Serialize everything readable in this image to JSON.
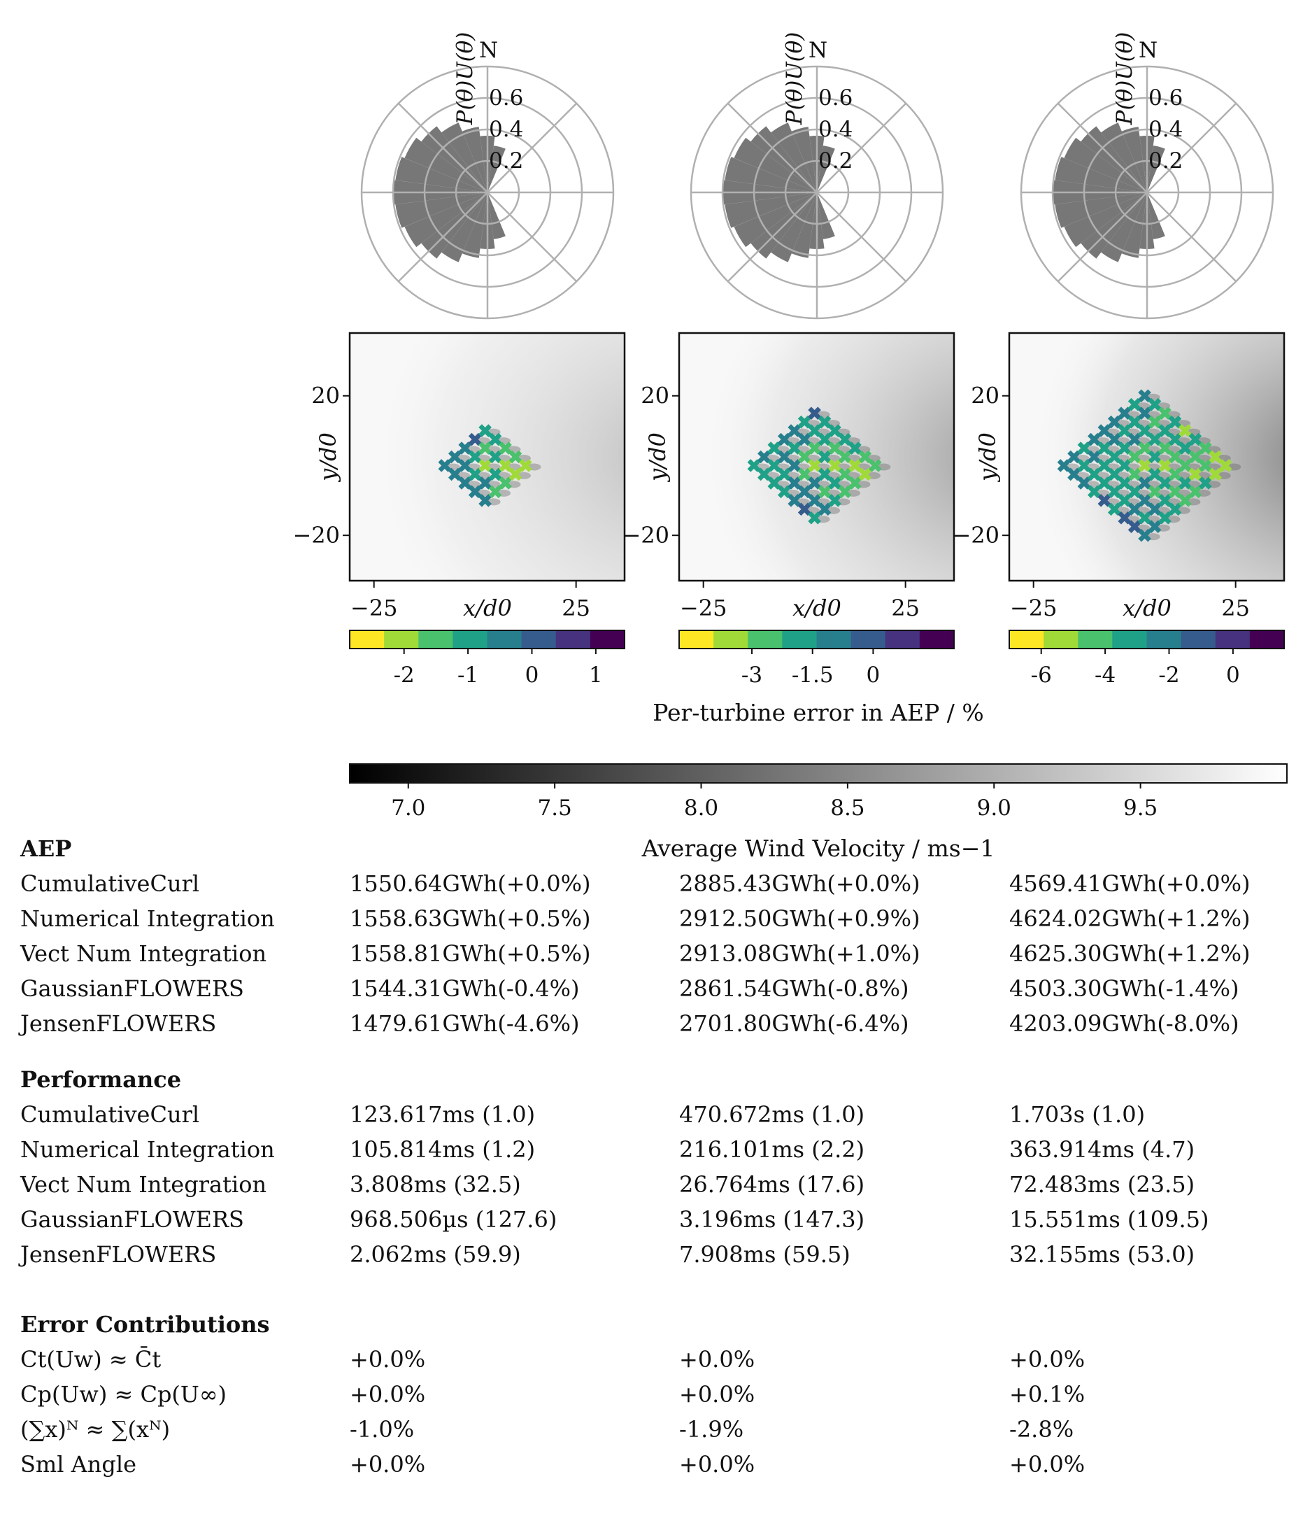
{
  "wind_roses": {
    "north_label": "N",
    "radial_label": "P(θ)U(θ)",
    "radial_ticks": [
      "0.6",
      "0.4",
      "0.2"
    ],
    "tick_values": [
      0.6,
      0.4,
      0.2
    ],
    "radial_max": 0.8,
    "sector_values": [
      0.3,
      0.36,
      0.42,
      0.48,
      0.53,
      0.57,
      0.59,
      0.6,
      0.59,
      0.57,
      0.53,
      0.48,
      0.42,
      0.36,
      0.3
    ]
  },
  "chart_data": [
    {
      "type": "scatter",
      "xlabel": "x/d0",
      "ylabel": "y/d0",
      "xlim": [
        -31,
        37
      ],
      "ylim": [
        -33,
        38
      ],
      "xticks": [
        "−25",
        "25"
      ],
      "xtick_values": [
        -25,
        25
      ],
      "yticks": [
        "20",
        "−20"
      ],
      "ytick_values": [
        20,
        -20
      ],
      "colorbar_ticks": [
        "-2",
        "-1",
        "0",
        "1"
      ],
      "colorbar_values": [
        -2,
        -1,
        0,
        1
      ],
      "colorbar_range": [
        -2.85,
        1.45
      ],
      "turbine_spacing": 5,
      "diamond_radius": 4
    },
    {
      "type": "scatter",
      "xlabel": "x/d0",
      "ylabel": "y/d0",
      "xlim": [
        -31,
        37
      ],
      "ylim": [
        -33,
        38
      ],
      "xticks": [
        "−25",
        "25"
      ],
      "xtick_values": [
        -25,
        25
      ],
      "yticks": [
        "20",
        "−20"
      ],
      "ytick_values": [
        20,
        -20
      ],
      "colorbar_ticks": [
        "-3",
        "-1.5",
        "0"
      ],
      "colorbar_values": [
        -3,
        -1.5,
        0
      ],
      "colorbar_range": [
        -4.8,
        2.0
      ],
      "turbine_spacing": 5,
      "diamond_radius": 6
    },
    {
      "type": "scatter",
      "xlabel": "x/d0",
      "ylabel": "y/d0",
      "xlim": [
        -31,
        37
      ],
      "ylim": [
        -33,
        38
      ],
      "xticks": [
        "−25",
        "25"
      ],
      "xtick_values": [
        -25,
        25
      ],
      "yticks": [
        "20",
        "−20"
      ],
      "ytick_values": [
        20,
        -20
      ],
      "colorbar_ticks": [
        "-6",
        "-4",
        "-2",
        "0"
      ],
      "colorbar_values": [
        -6,
        -4,
        -2,
        0
      ],
      "colorbar_range": [
        -7,
        1.6
      ],
      "turbine_spacing": 5,
      "diamond_radius": 8
    },
    {
      "type": "heatmap",
      "title": "Average Wind Velocity / ms−1",
      "colorbar_ticks": [
        "7.0",
        "7.5",
        "8.0",
        "8.5",
        "9.0",
        "9.5"
      ],
      "colorbar_values": [
        7.0,
        7.5,
        8.0,
        8.5,
        9.0,
        9.5
      ],
      "colorbar_range": [
        6.8,
        10.0
      ]
    }
  ],
  "error_colorbar_label": "Per-turbine error in AEP / %",
  "velocity_colorbar_label": "Average Wind Velocity / ms−1",
  "colors": {
    "viridis": [
      "#fde725",
      "#a0da39",
      "#4ac16d",
      "#1fa187",
      "#277f8e",
      "#365c8d",
      "#46327e",
      "#440154"
    ],
    "grid": "#b0b0b0",
    "bars": "#777777"
  },
  "table": {
    "aep": {
      "heading": "AEP",
      "rows": [
        {
          "label": "CumulativeCurl",
          "values": [
            "1550.64GWh(+0.0%)",
            "2885.43GWh(+0.0%)",
            "4569.41GWh(+0.0%)"
          ]
        },
        {
          "label": "Numerical Integration",
          "values": [
            "1558.63GWh(+0.5%)",
            "2912.50GWh(+0.9%)",
            "4624.02GWh(+1.2%)"
          ]
        },
        {
          "label": "Vect Num Integration",
          "values": [
            "1558.81GWh(+0.5%)",
            "2913.08GWh(+1.0%)",
            "4625.30GWh(+1.2%)"
          ]
        },
        {
          "label": "GaussianFLOWERS",
          "values": [
            "1544.31GWh(-0.4%)",
            "2861.54GWh(-0.8%)",
            "4503.30GWh(-1.4%)"
          ]
        },
        {
          "label": "JensenFLOWERS",
          "values": [
            "1479.61GWh(-4.6%)",
            "2701.80GWh(-6.4%)",
            "4203.09GWh(-8.0%)"
          ]
        }
      ]
    },
    "performance": {
      "heading": "Performance",
      "rows": [
        {
          "label": "CumulativeCurl",
          "values": [
            "123.617ms (1.0)",
            "470.672ms (1.0)",
            "1.703s (1.0)"
          ]
        },
        {
          "label": "Numerical Integration",
          "values": [
            "105.814ms (1.2)",
            "216.101ms (2.2)",
            "363.914ms (4.7)"
          ]
        },
        {
          "label": "Vect Num Integration",
          "values": [
            "3.808ms (32.5)",
            "26.764ms (17.6)",
            "72.483ms (23.5)"
          ]
        },
        {
          "label": "GaussianFLOWERS",
          "values": [
            "968.506µs (127.6)",
            "3.196ms (147.3)",
            "15.551ms (109.5)"
          ]
        },
        {
          "label": "JensenFLOWERS",
          "values": [
            "2.062ms (59.9)",
            "7.908ms (59.5)",
            "32.155ms (53.0)"
          ]
        }
      ]
    },
    "errors": {
      "heading": "Error Contributions",
      "rows": [
        {
          "label": "Ct(Uw) ≈ C̄t",
          "values": [
            "+0.0%",
            "+0.0%",
            "+0.0%"
          ]
        },
        {
          "label": "Cp(Uw) ≈ Cp(U∞)",
          "values": [
            "+0.0%",
            "+0.0%",
            "+0.1%"
          ]
        },
        {
          "label": "(∑x)ᴺ ≈ ∑(xᴺ)",
          "values": [
            "-1.0%",
            "-1.9%",
            "-2.8%"
          ]
        },
        {
          "label": "Sml Angle",
          "values": [
            "+0.0%",
            "+0.0%",
            "+0.0%"
          ]
        }
      ]
    }
  }
}
